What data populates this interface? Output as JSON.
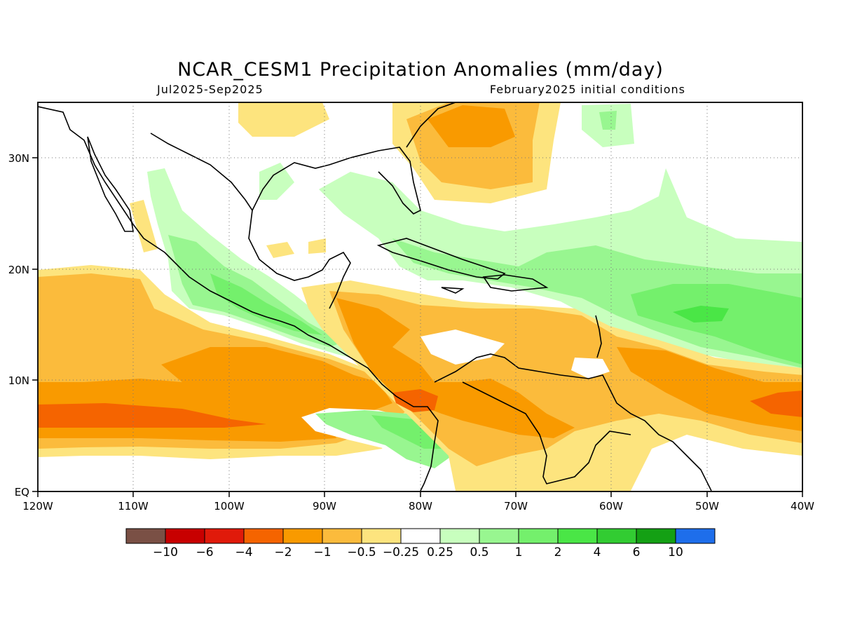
{
  "title": "NCAR_CESM1 Precipitation Anomalies (mm/day)",
  "period": "Jul2025-Sep2025",
  "init": "February2025 initial conditions",
  "map": {
    "lon_range": [
      -120,
      -40
    ],
    "lat_range": [
      0,
      35
    ],
    "lon_ticks": [
      {
        "value": -120,
        "label": "120W"
      },
      {
        "value": -110,
        "label": "110W"
      },
      {
        "value": -100,
        "label": "100W"
      },
      {
        "value": -90,
        "label": "90W"
      },
      {
        "value": -80,
        "label": "80W"
      },
      {
        "value": -70,
        "label": "70W"
      },
      {
        "value": -60,
        "label": "60W"
      },
      {
        "value": -50,
        "label": "50W"
      },
      {
        "value": -40,
        "label": "40W"
      }
    ],
    "lat_ticks": [
      {
        "value": 0,
        "label": "EQ"
      },
      {
        "value": 10,
        "label": "10N"
      },
      {
        "value": 20,
        "label": "20N"
      },
      {
        "value": 30,
        "label": "30N"
      }
    ],
    "grid": "dotted"
  },
  "colorbar": {
    "colors": [
      "#7a5045",
      "#c80000",
      "#e01a0a",
      "#f56400",
      "#f99a00",
      "#fbbb3c",
      "#fde47e",
      "#ffffff",
      "#c8ffbe",
      "#98f690",
      "#74f06c",
      "#4ae646",
      "#32cc32",
      "#14a014",
      "#1e6eeb"
    ],
    "labels": [
      "−10",
      "−6",
      "−4",
      "−2",
      "−1",
      "−0.5",
      "−0.25",
      "0.25",
      "0.5",
      "1",
      "2",
      "4",
      "6",
      "10"
    ]
  }
}
